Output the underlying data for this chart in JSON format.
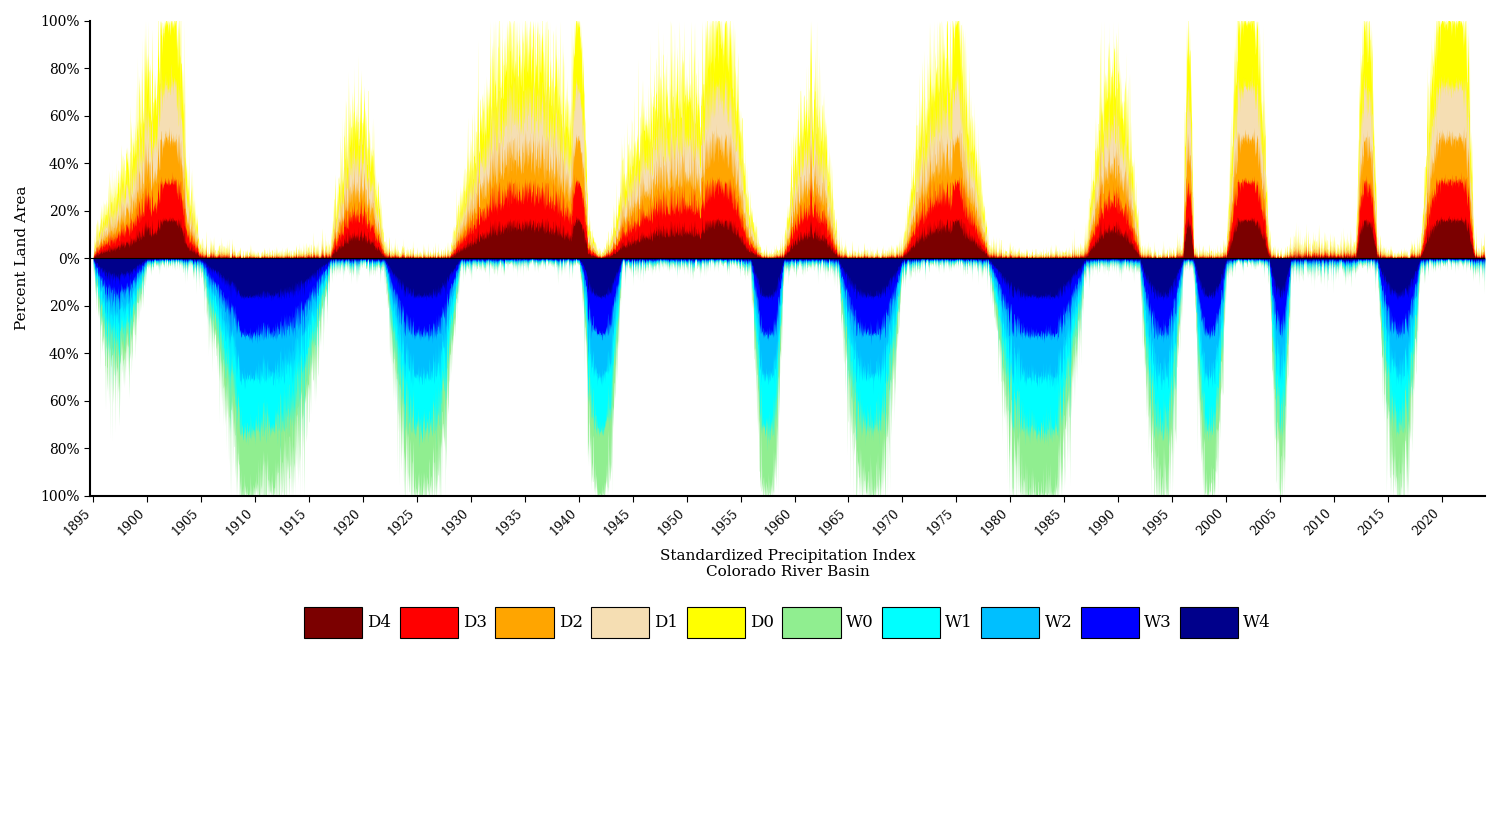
{
  "xlabel_line1": "Standardized Precipitation Index",
  "xlabel_line2": "Colorado River Basin",
  "ylabel": "Percent Land Area",
  "year_start": 1895,
  "year_end": 2023,
  "ytick_vals": [
    -1.0,
    -0.8,
    -0.6,
    -0.4,
    -0.2,
    0.0,
    0.2,
    0.4,
    0.6,
    0.8,
    1.0
  ],
  "ytick_labels": [
    "100%",
    "80%",
    "60%",
    "40%",
    "20%",
    "0%",
    "20%",
    "40%",
    "60%",
    "80%",
    "100%"
  ],
  "background_color": "#ffffff",
  "d_colors_outer_to_inner": [
    "#FFFF00",
    "#F5DEB3",
    "#FFA500",
    "#FF0000",
    "#7B0000"
  ],
  "w_colors_outer_to_inner": [
    "#90EE90",
    "#00FFFF",
    "#00BFFF",
    "#0000FF",
    "#00008B"
  ],
  "legend_colors": [
    "#7B0000",
    "#FF0000",
    "#FFA500",
    "#F5DEB3",
    "#FFFF00",
    "#90EE90",
    "#00FFFF",
    "#00BFFF",
    "#0000FF",
    "#00008B"
  ],
  "legend_labels": [
    "D4",
    "D3",
    "D2",
    "D1",
    "D0",
    "W0",
    "W1",
    "W2",
    "W3",
    "W4"
  ],
  "figsize": [
    15.0,
    8.16
  ],
  "dpi": 100
}
